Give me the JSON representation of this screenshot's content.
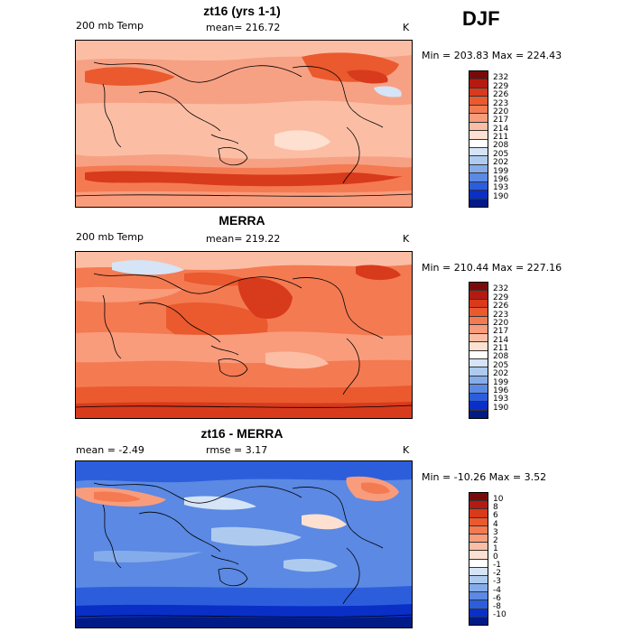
{
  "season": "DJF",
  "panels": [
    {
      "title": "zt16 (yrs 1-1)",
      "left_label": "200 mb Temp",
      "center_label": "mean= 216.72",
      "units": "K",
      "minmax": "Min = 203.83 Max = 224.43",
      "colorbar": {
        "labels": [
          "232",
          "229",
          "226",
          "223",
          "220",
          "217",
          "214",
          "211",
          "208",
          "205",
          "202",
          "199",
          "196",
          "193",
          "190"
        ],
        "colors": [
          "#7a0a0a",
          "#b51a10",
          "#d83a1c",
          "#ea5a2e",
          "#f47a52",
          "#f99c7c",
          "#fbbea5",
          "#fde0d0",
          "#ffffff",
          "#d5e4f6",
          "#aecbef",
          "#85acea",
          "#5b89e3",
          "#2c5edc",
          "#0a2fc7",
          "#001a86"
        ]
      }
    },
    {
      "title": "MERRA",
      "left_label": "200 mb Temp",
      "center_label": "mean= 219.22",
      "units": "K",
      "minmax": "Min = 210.44 Max = 227.16",
      "colorbar": {
        "labels": [
          "232",
          "229",
          "226",
          "223",
          "220",
          "217",
          "214",
          "211",
          "208",
          "205",
          "202",
          "199",
          "196",
          "193",
          "190"
        ],
        "colors": [
          "#7a0a0a",
          "#b51a10",
          "#d83a1c",
          "#ea5a2e",
          "#f47a52",
          "#f99c7c",
          "#fbbea5",
          "#fde0d0",
          "#ffffff",
          "#d5e4f6",
          "#aecbef",
          "#85acea",
          "#5b89e3",
          "#2c5edc",
          "#0a2fc7",
          "#001a86"
        ]
      }
    },
    {
      "title": "zt16 - MERRA",
      "left_label": "mean =   -2.49",
      "center_label": "rmse =   3.17",
      "units": "K",
      "minmax": "Min = -10.26 Max =   3.52",
      "colorbar": {
        "labels": [
          "10",
          "8",
          "6",
          "4",
          "3",
          "2",
          "1",
          "0",
          "-1",
          "-2",
          "-3",
          "-4",
          "-6",
          "-8",
          "-10"
        ],
        "colors": [
          "#7a0a0a",
          "#b51a10",
          "#d83a1c",
          "#ea5a2e",
          "#f47a52",
          "#f99c7c",
          "#fbbea5",
          "#fde0d0",
          "#ffffff",
          "#d5e4f6",
          "#aecbef",
          "#85acea",
          "#5b89e3",
          "#2c5edc",
          "#0a2fc7",
          "#001a86"
        ]
      }
    }
  ]
}
